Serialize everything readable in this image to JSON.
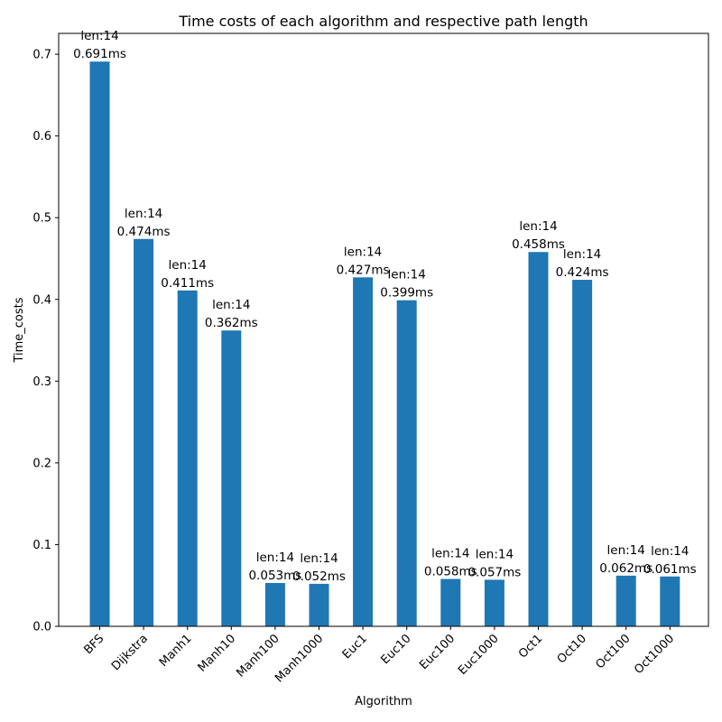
{
  "chart_data": {
    "type": "bar",
    "title": "Time costs of each algorithm and respective path length",
    "xlabel": "Algorithm",
    "ylabel": "Time_costs",
    "categories": [
      "BFS",
      "Dijkstra",
      "Manh1",
      "Manh10",
      "Manh100",
      "Manh1000",
      "Euc1",
      "Euc10",
      "Euc100",
      "Euc1000",
      "Oct1",
      "Oct10",
      "Oct100",
      "Oct1000"
    ],
    "values": [
      0.691,
      0.474,
      0.411,
      0.362,
      0.053,
      0.052,
      0.427,
      0.399,
      0.058,
      0.057,
      0.458,
      0.424,
      0.062,
      0.061
    ],
    "bar_labels_top": [
      "len:14",
      "len:14",
      "len:14",
      "len:14",
      "len:14",
      "len:14",
      "len:14",
      "len:14",
      "len:14",
      "len:14",
      "len:14",
      "len:14",
      "len:14",
      "len:14"
    ],
    "bar_labels_bottom": [
      "0.691ms",
      "0.474ms",
      "0.411ms",
      "0.362ms",
      "0.053ms",
      "0.052ms",
      "0.427ms",
      "0.399ms",
      "0.058ms",
      "0.057ms",
      "0.458ms",
      "0.424ms",
      "0.062ms",
      "0.061ms"
    ],
    "yticks": [
      "0.0",
      "0.1",
      "0.2",
      "0.3",
      "0.4",
      "0.5",
      "0.6",
      "0.7"
    ],
    "ylim": [
      0,
      0.7255
    ],
    "grid": false,
    "bar_color": "#1f77b4"
  }
}
